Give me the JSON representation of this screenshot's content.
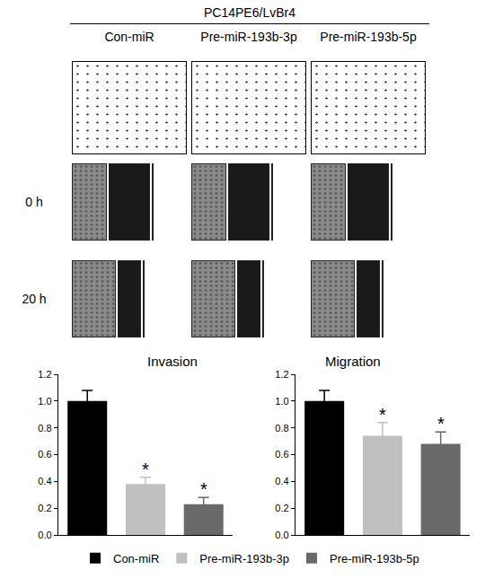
{
  "header": {
    "title": "PC14PE6/LvBr4",
    "columns": [
      "Con-miR",
      "Pre-miR-193b-3p",
      "Pre-miR-193b-5p"
    ],
    "rows": [
      "0 h",
      "20 h"
    ]
  },
  "chart_data": [
    {
      "type": "bar",
      "title": "Invasion",
      "categories": [
        "Con-miR",
        "Pre-miR-193b-3p",
        "Pre-miR-193b-5p"
      ],
      "values": [
        1.0,
        0.38,
        0.23
      ],
      "errors": [
        0.08,
        0.05,
        0.05
      ],
      "colors": [
        "#000000",
        "#c0c0c0",
        "#696969"
      ],
      "annotations": [
        {
          "category": "Pre-miR-193b-3p",
          "text": "*"
        },
        {
          "category": "Pre-miR-193b-5p",
          "text": "*"
        }
      ],
      "ylim": [
        0,
        1.2
      ],
      "yticks": [
        {
          "value": 0,
          "label": "0.0"
        },
        0.2,
        0.4,
        0.6,
        0.8,
        {
          "value": 1,
          "label": "1.0"
        },
        1.2
      ],
      "tick_labels": "y",
      "legend": "bottom"
    },
    {
      "type": "bar",
      "title": "Migration",
      "categories": [
        "Con-miR",
        "Pre-miR-193b-3p",
        "Pre-miR-193b-5p"
      ],
      "values": [
        1.0,
        0.74,
        0.68
      ],
      "errors": [
        0.08,
        0.1,
        0.09
      ],
      "colors": [
        "#000000",
        "#c0c0c0",
        "#696969"
      ],
      "annotations": [
        {
          "category": "Pre-miR-193b-3p",
          "text": "*"
        },
        {
          "category": "Pre-miR-193b-5p",
          "text": "*"
        }
      ],
      "ylim": [
        0,
        1.2
      ],
      "yticks": [
        {
          "value": 0,
          "label": "0.0"
        },
        0.2,
        0.4,
        0.6,
        0.8,
        {
          "value": 1,
          "label": "1.0"
        },
        1.2
      ],
      "tick_labels": "y"
    }
  ]
}
